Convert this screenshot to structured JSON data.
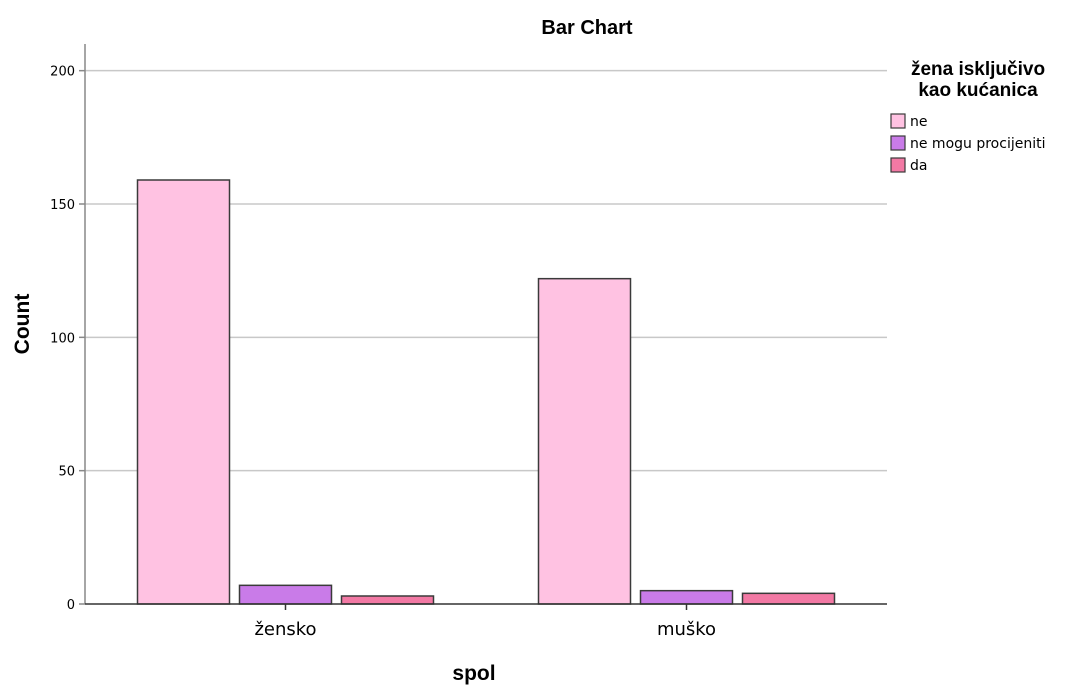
{
  "chart_data": {
    "type": "bar",
    "title": "Bar Chart",
    "xlabel": "spol",
    "ylabel": "Count",
    "categories": [
      "žensko",
      "muško"
    ],
    "series": [
      {
        "name": "ne",
        "color": "#FFC2E2",
        "values": [
          159,
          122
        ]
      },
      {
        "name": "ne mogu procijeniti",
        "color": "#C97BE8",
        "values": [
          7,
          5
        ]
      },
      {
        "name": "da",
        "color": "#F279A4",
        "values": [
          3,
          4
        ]
      }
    ],
    "ylim": [
      0,
      210
    ],
    "yticks": [
      0,
      50,
      100,
      150,
      200
    ],
    "grid": true,
    "legend": {
      "title": "žena isključivo\nkao kućanica",
      "placement": "right"
    }
  }
}
